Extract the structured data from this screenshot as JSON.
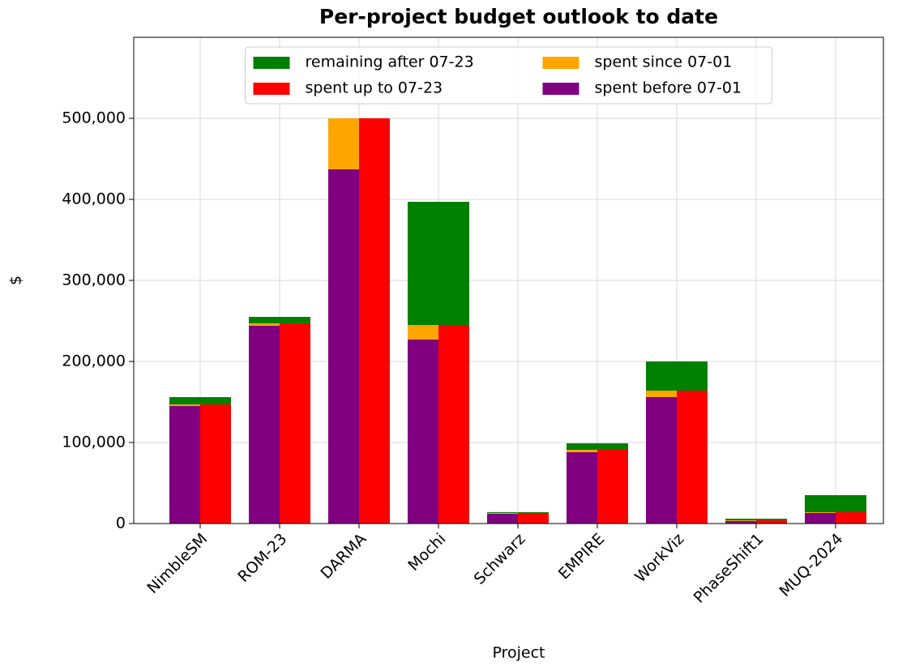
{
  "chart_data": {
    "type": "bar",
    "title": "Per-project budget outlook to date",
    "xlabel": "Project",
    "ylabel": "$",
    "categories": [
      "NimbleSM",
      "ROM-23",
      "DARMA",
      "Mochi",
      "Schwarz",
      "EMPIRE",
      "WorkViz",
      "PhaseShift1",
      "MUQ-2024"
    ],
    "series": [
      {
        "name": "remaining after 07-23",
        "color": "#008000",
        "values": [
          9000,
          8000,
          0,
          152000,
          1000,
          8000,
          36000,
          2000,
          21000
        ]
      },
      {
        "name": "spent up to 07-23",
        "color": "#ff0000",
        "values": [
          147000,
          247000,
          500000,
          245000,
          13000,
          91000,
          164000,
          4000,
          14000
        ]
      },
      {
        "name": "spent since 07-01",
        "color": "#ffa500",
        "values": [
          2000,
          3000,
          63000,
          18000,
          1000,
          3000,
          8000,
          1000,
          1000
        ]
      },
      {
        "name": "spent before 07-01",
        "color": "#800080",
        "values": [
          145000,
          244000,
          437000,
          227000,
          12000,
          88000,
          156000,
          3000,
          13000
        ]
      }
    ],
    "ylim": [
      0,
      600000
    ],
    "yticks": [
      0,
      {
        "value": 100000,
        "label": "100,000"
      },
      {
        "value": 200000,
        "label": "200,000"
      },
      {
        "value": 300000,
        "label": "300,000"
      },
      {
        "value": 400000,
        "label": "400,000"
      },
      {
        "value": 500000,
        "label": "500,000"
      }
    ],
    "grid": true,
    "legend": "upper center"
  }
}
